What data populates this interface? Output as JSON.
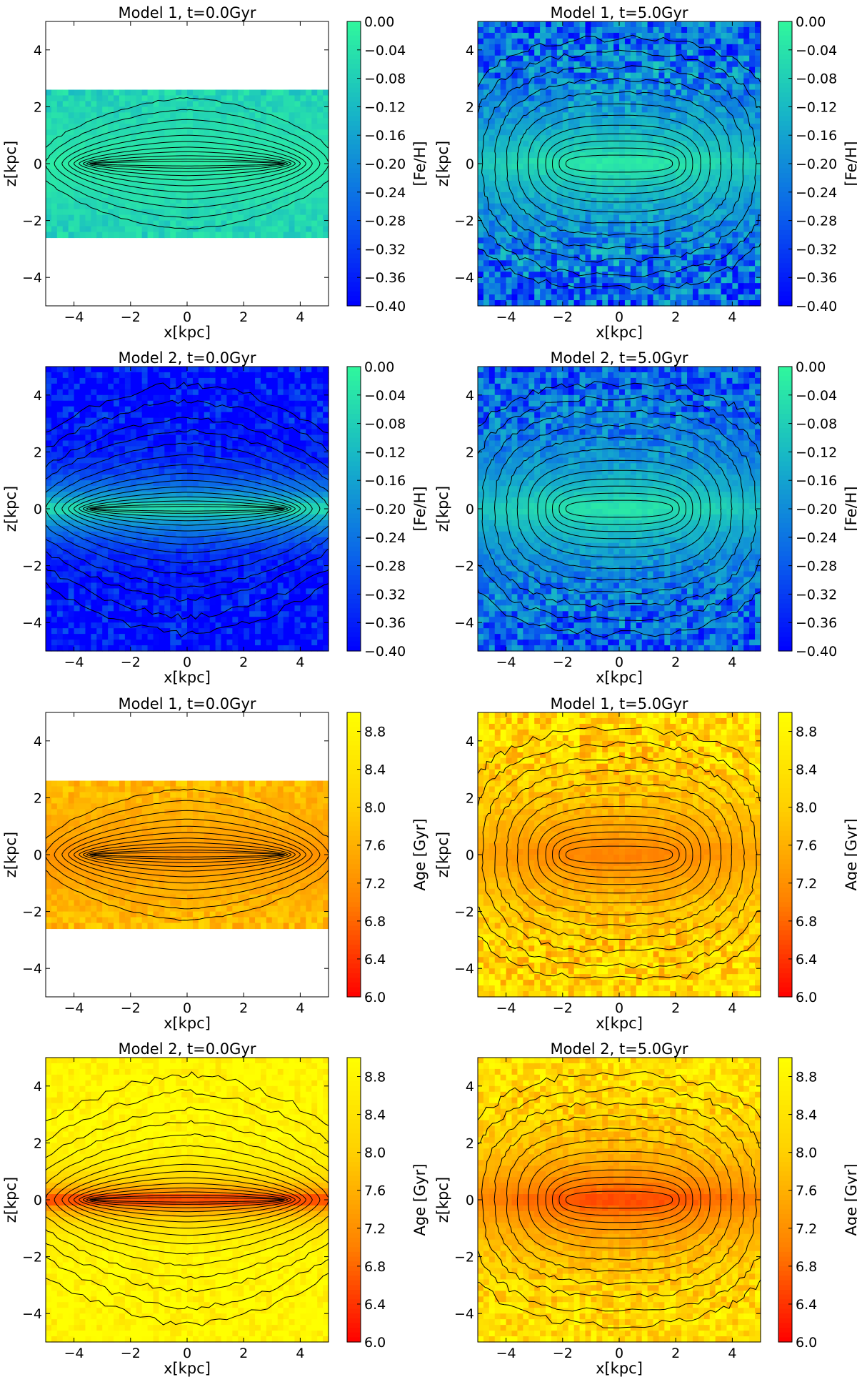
{
  "figure": {
    "colormaps": {
      "feh": [
        "#0000ff",
        "#0a64ea",
        "#16b3c8",
        "#30f79d"
      ],
      "age": [
        "#ff0000",
        "#ff8000",
        "#ffd000",
        "#ffff00"
      ]
    },
    "contour_color": "#000000"
  },
  "chart_data": [
    {
      "type": "heatmap",
      "title": "Model 1, t=0.0Gyr",
      "xlabel": "x[kpc]",
      "ylabel": "z[kpc]",
      "colorbar_label": "[Fe/H]",
      "xlim": [
        -5,
        5
      ],
      "ylim": [
        -5,
        5
      ],
      "xticks": [
        "−4",
        "−2",
        "0",
        "2",
        "4"
      ],
      "xtick_values": [
        -4,
        -2,
        0,
        2,
        4
      ],
      "yticks": [
        "4",
        "2",
        "0",
        "−2",
        "−4"
      ],
      "ytick_values": [
        4,
        2,
        0,
        -2,
        -4
      ],
      "colorbar_ticks": [
        "0.00",
        "−0.04",
        "−0.08",
        "−0.12",
        "−0.16",
        "−0.20",
        "−0.24",
        "−0.28",
        "−0.32",
        "−0.36",
        "−0.40"
      ],
      "colorbar_tick_values": [
        0.0,
        -0.04,
        -0.08,
        -0.12,
        -0.16,
        -0.2,
        -0.24,
        -0.28,
        -0.32,
        -0.36,
        -0.4
      ],
      "colorbar_range": [
        -0.4,
        0.0
      ],
      "colormap": "feh",
      "data_extent_z": 2.6,
      "field": {
        "center_value": -0.02,
        "edge_value": -0.1,
        "scale_height_kpc": 2.2,
        "radial_scale_kpc": 40,
        "noise": 0.04
      }
    },
    {
      "type": "heatmap",
      "title": "Model 1, t=5.0Gyr",
      "xlabel": "x[kpc]",
      "ylabel": "z[kpc]",
      "colorbar_label": "[Fe/H]",
      "xlim": [
        -5,
        5
      ],
      "ylim": [
        -5,
        5
      ],
      "xticks": [
        "−4",
        "−2",
        "0",
        "2",
        "4"
      ],
      "xtick_values": [
        -4,
        -2,
        0,
        2,
        4
      ],
      "yticks": [
        "4",
        "2",
        "0",
        "−2",
        "−4"
      ],
      "ytick_values": [
        4,
        2,
        0,
        -2,
        -4
      ],
      "colorbar_ticks": [
        "0.00",
        "−0.04",
        "−0.08",
        "−0.12",
        "−0.16",
        "−0.20",
        "−0.24",
        "−0.28",
        "−0.32",
        "−0.36",
        "−0.40"
      ],
      "colorbar_tick_values": [
        0.0,
        -0.04,
        -0.08,
        -0.12,
        -0.16,
        -0.2,
        -0.24,
        -0.28,
        -0.32,
        -0.36,
        -0.4
      ],
      "colorbar_range": [
        -0.4,
        0.0
      ],
      "colormap": "feh",
      "data_extent_z": 5,
      "field": {
        "center_value": -0.02,
        "edge_value": -0.3,
        "scale_height_kpc": 2.5,
        "radial_scale_kpc": 9,
        "noise": 0.08
      }
    },
    {
      "type": "heatmap",
      "title": "Model 2, t=0.0Gyr",
      "xlabel": "x[kpc]",
      "ylabel": "z[kpc]",
      "colorbar_label": "[Fe/H]",
      "xlim": [
        -5,
        5
      ],
      "ylim": [
        -5,
        5
      ],
      "xticks": [
        "−4",
        "−2",
        "0",
        "2",
        "4"
      ],
      "xtick_values": [
        -4,
        -2,
        0,
        2,
        4
      ],
      "yticks": [
        "4",
        "2",
        "0",
        "−2",
        "−4"
      ],
      "ytick_values": [
        4,
        2,
        0,
        -2,
        -4
      ],
      "colorbar_ticks": [
        "0.00",
        "−0.04",
        "−0.08",
        "−0.12",
        "−0.16",
        "−0.20",
        "−0.24",
        "−0.28",
        "−0.32",
        "−0.36",
        "−0.40"
      ],
      "colorbar_tick_values": [
        0.0,
        -0.04,
        -0.08,
        -0.12,
        -0.16,
        -0.2,
        -0.24,
        -0.28,
        -0.32,
        -0.36,
        -0.4
      ],
      "colorbar_range": [
        -0.4,
        0.0
      ],
      "colormap": "feh",
      "data_extent_z": 5,
      "field": {
        "center_value": -0.02,
        "edge_value": -0.4,
        "scale_height_kpc": 0.9,
        "radial_scale_kpc": 40,
        "noise": 0.06
      }
    },
    {
      "type": "heatmap",
      "title": "Model 2, t=5.0Gyr",
      "xlabel": "x[kpc]",
      "ylabel": "z[kpc]",
      "colorbar_label": "[Fe/H]",
      "xlim": [
        -5,
        5
      ],
      "ylim": [
        -5,
        5
      ],
      "xticks": [
        "−4",
        "−2",
        "0",
        "2",
        "4"
      ],
      "xtick_values": [
        -4,
        -2,
        0,
        2,
        4
      ],
      "yticks": [
        "4",
        "2",
        "0",
        "−2",
        "−4"
      ],
      "ytick_values": [
        4,
        2,
        0,
        -2,
        -4
      ],
      "colorbar_ticks": [
        "0.00",
        "−0.04",
        "−0.08",
        "−0.12",
        "−0.16",
        "−0.20",
        "−0.24",
        "−0.28",
        "−0.32",
        "−0.36",
        "−0.40"
      ],
      "colorbar_tick_values": [
        0.0,
        -0.04,
        -0.08,
        -0.12,
        -0.16,
        -0.2,
        -0.24,
        -0.28,
        -0.32,
        -0.36,
        -0.4
      ],
      "colorbar_range": [
        -0.4,
        0.0
      ],
      "colormap": "feh",
      "data_extent_z": 5,
      "field": {
        "center_value": -0.03,
        "edge_value": -0.3,
        "scale_height_kpc": 2.2,
        "radial_scale_kpc": 9,
        "noise": 0.07
      }
    },
    {
      "type": "heatmap",
      "title": "Model 1, t=0.0Gyr",
      "xlabel": "x[kpc]",
      "ylabel": "z[kpc]",
      "colorbar_label": "Age [Gyr]",
      "xlim": [
        -5,
        5
      ],
      "ylim": [
        -5,
        5
      ],
      "xticks": [
        "−4",
        "−2",
        "0",
        "2",
        "4"
      ],
      "xtick_values": [
        -4,
        -2,
        0,
        2,
        4
      ],
      "yticks": [
        "4",
        "2",
        "0",
        "−2",
        "−4"
      ],
      "ytick_values": [
        4,
        2,
        0,
        -2,
        -4
      ],
      "colorbar_ticks": [
        "8.8",
        "8.4",
        "8.0",
        "7.6",
        "7.2",
        "6.8",
        "6.4",
        "6.0"
      ],
      "colorbar_tick_values": [
        8.8,
        8.4,
        8.0,
        7.6,
        7.2,
        6.8,
        6.4,
        6.0
      ],
      "colorbar_range": [
        6.0,
        9.0
      ],
      "colormap": "age",
      "data_extent_z": 2.6,
      "field": {
        "center_value": 7.2,
        "edge_value": 8.0,
        "scale_height_kpc": 2.2,
        "radial_scale_kpc": 40,
        "noise": 0.4
      }
    },
    {
      "type": "heatmap",
      "title": "Model 1, t=5.0Gyr",
      "xlabel": "x[kpc]",
      "ylabel": "z[kpc]",
      "colorbar_label": "Age [Gyr]",
      "xlim": [
        -5,
        5
      ],
      "ylim": [
        -5,
        5
      ],
      "xticks": [
        "−4",
        "−2",
        "0",
        "2",
        "4"
      ],
      "xtick_values": [
        -4,
        -2,
        0,
        2,
        4
      ],
      "yticks": [
        "4",
        "2",
        "0",
        "−2",
        "−4"
      ],
      "ytick_values": [
        4,
        2,
        0,
        -2,
        -4
      ],
      "colorbar_ticks": [
        "8.8",
        "8.4",
        "8.0",
        "7.6",
        "7.2",
        "6.8",
        "6.4",
        "6.0"
      ],
      "colorbar_tick_values": [
        8.8,
        8.4,
        8.0,
        7.6,
        7.2,
        6.8,
        6.4,
        6.0
      ],
      "colorbar_range": [
        6.0,
        9.0
      ],
      "colormap": "age",
      "data_extent_z": 5,
      "field": {
        "center_value": 7.0,
        "edge_value": 8.6,
        "scale_height_kpc": 3.0,
        "radial_scale_kpc": 9,
        "noise": 0.5
      }
    },
    {
      "type": "heatmap",
      "title": "Model 2, t=0.0Gyr",
      "xlabel": "x[kpc]",
      "ylabel": "z[kpc]",
      "colorbar_label": "Age [Gyr]",
      "xlim": [
        -5,
        5
      ],
      "ylim": [
        -5,
        5
      ],
      "xticks": [
        "−4",
        "−2",
        "0",
        "2",
        "4"
      ],
      "xtick_values": [
        -4,
        -2,
        0,
        2,
        4
      ],
      "yticks": [
        "4",
        "2",
        "0",
        "−2",
        "−4"
      ],
      "ytick_values": [
        4,
        2,
        0,
        -2,
        -4
      ],
      "colorbar_ticks": [
        "8.8",
        "8.4",
        "8.0",
        "7.6",
        "7.2",
        "6.8",
        "6.4",
        "6.0"
      ],
      "colorbar_tick_values": [
        8.8,
        8.4,
        8.0,
        7.6,
        7.2,
        6.8,
        6.4,
        6.0
      ],
      "colorbar_range": [
        6.0,
        9.0
      ],
      "colormap": "age",
      "data_extent_z": 5,
      "field": {
        "center_value": 6.2,
        "edge_value": 8.9,
        "scale_height_kpc": 0.6,
        "radial_scale_kpc": 40,
        "noise": 0.3
      }
    },
    {
      "type": "heatmap",
      "title": "Model 2, t=5.0Gyr",
      "xlabel": "x[kpc]",
      "ylabel": "z[kpc]",
      "colorbar_label": "Age [Gyr]",
      "xlim": [
        -5,
        5
      ],
      "ylim": [
        -5,
        5
      ],
      "xticks": [
        "−4",
        "−2",
        "0",
        "2",
        "4"
      ],
      "xtick_values": [
        -4,
        -2,
        0,
        2,
        4
      ],
      "yticks": [
        "4",
        "2",
        "0",
        "−2",
        "−4"
      ],
      "ytick_values": [
        4,
        2,
        0,
        -2,
        -4
      ],
      "colorbar_ticks": [
        "8.8",
        "8.4",
        "8.0",
        "7.6",
        "7.2",
        "6.8",
        "6.4",
        "6.0"
      ],
      "colorbar_tick_values": [
        8.8,
        8.4,
        8.0,
        7.6,
        7.2,
        6.8,
        6.4,
        6.0
      ],
      "colorbar_range": [
        6.0,
        9.0
      ],
      "colormap": "age",
      "data_extent_z": 5,
      "field": {
        "center_value": 6.5,
        "edge_value": 8.6,
        "scale_height_kpc": 2.2,
        "radial_scale_kpc": 9,
        "noise": 0.4
      }
    }
  ]
}
